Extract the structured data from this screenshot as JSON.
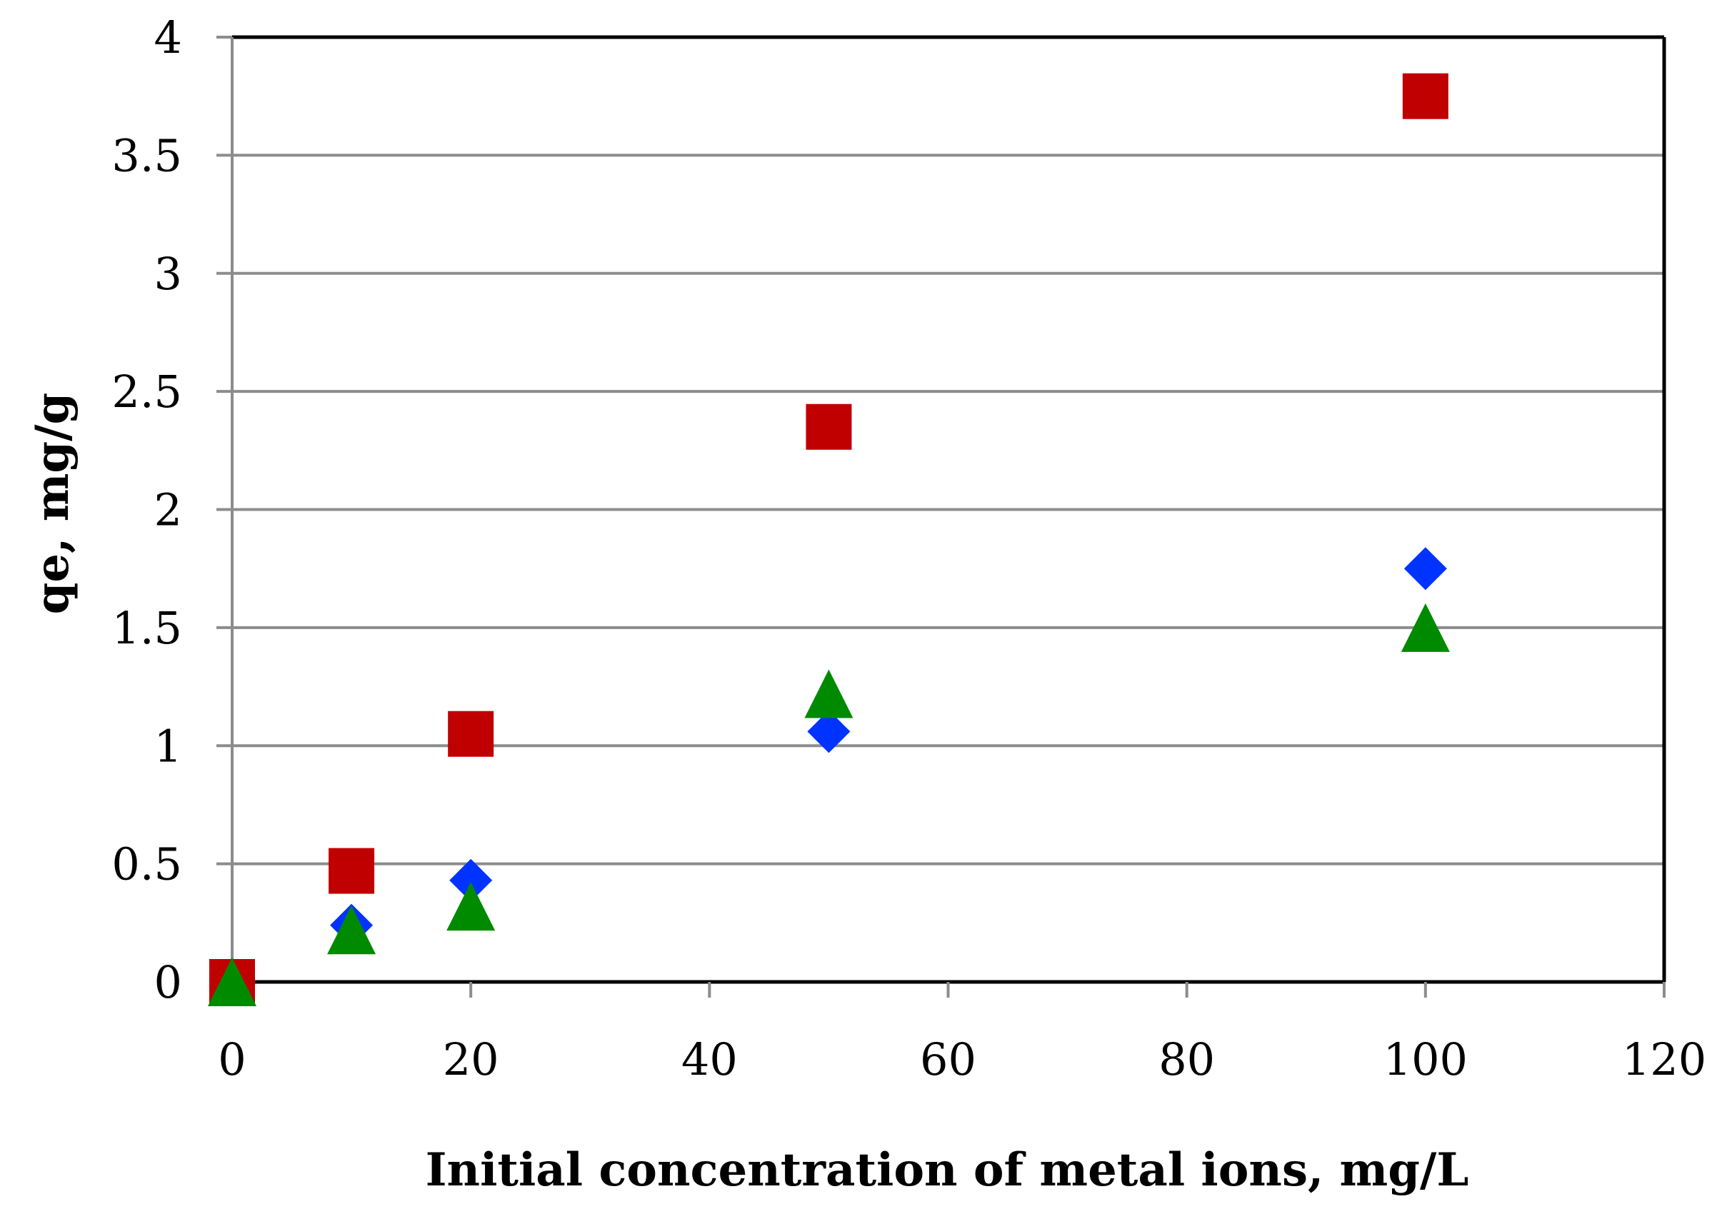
{
  "chart_data": {
    "type": "scatter",
    "title": "",
    "xlabel": "Initial concentration of metal ions, mg/L",
    "ylabel": "qe, mg/g",
    "xlim": [
      0,
      120
    ],
    "ylim": [
      0,
      4
    ],
    "xticks": [
      "0",
      "20",
      "40",
      "60",
      "80",
      "100",
      "120"
    ],
    "yticks": [
      "0",
      "0.5",
      "1",
      "1.5",
      "2",
      "2.5",
      "3",
      "3.5",
      "4"
    ],
    "grid": "horizontal",
    "legend": "none",
    "series": [
      {
        "name": "series-diamond",
        "marker": "diamond",
        "color": "#0033ff",
        "x": [
          0,
          10,
          20,
          50,
          100
        ],
        "y": [
          0,
          0.24,
          0.43,
          1.06,
          1.75
        ]
      },
      {
        "name": "series-square",
        "marker": "square",
        "color": "#c00000",
        "x": [
          0,
          10,
          20,
          50,
          100
        ],
        "y": [
          0,
          0.47,
          1.05,
          2.35,
          3.75
        ]
      },
      {
        "name": "series-triangle",
        "marker": "triangle",
        "color": "#008a00",
        "x": [
          0,
          10,
          20,
          50,
          100
        ],
        "y": [
          0,
          0.22,
          0.32,
          1.22,
          1.5
        ]
      }
    ]
  }
}
